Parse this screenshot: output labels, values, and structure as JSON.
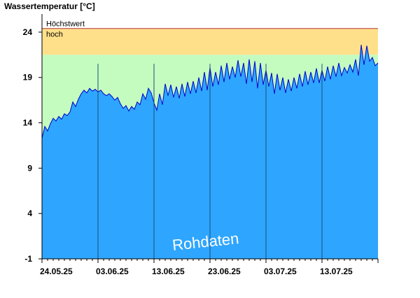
{
  "chart_data": {
    "type": "area",
    "title": "Wassertemperatur [°C]",
    "watermark": "Rohdaten",
    "ylim": [
      -1,
      26
    ],
    "y_ticks": [
      -1,
      4,
      9,
      14,
      19,
      24
    ],
    "x_range_days": [
      0,
      60
    ],
    "x_ticks": [
      {
        "label": "24.05.25",
        "day": 0
      },
      {
        "label": "03.06.25",
        "day": 10
      },
      {
        "label": "13.06.25",
        "day": 20
      },
      {
        "label": "23.06.25",
        "day": 30
      },
      {
        "label": "03.07.25",
        "day": 40
      },
      {
        "label": "13.07.25",
        "day": 50
      }
    ],
    "bands": [
      {
        "label": "hoch",
        "from": 21.5,
        "to": 24.4,
        "color": "#ffe08a"
      },
      {
        "label": "",
        "from": -1,
        "to": 21.5,
        "color": "#c4fcc0"
      }
    ],
    "threshold_lines": [
      {
        "label": "Höchstwert",
        "value": 24.4,
        "color": "#b03030"
      }
    ],
    "colors": {
      "fill": "#2ea6ff",
      "line": "#0000cc",
      "grid": "#1a4f80",
      "axis": "#000000"
    },
    "series": [
      {
        "x": [
          0,
          0.5,
          1,
          1.5,
          2,
          2.5,
          3,
          3.5,
          4,
          4.5,
          5,
          5.5,
          6,
          6.5,
          7,
          7.5,
          8,
          8.5,
          9,
          9.5,
          10,
          10.5,
          11,
          11.5,
          12,
          12.5,
          13,
          13.5,
          14,
          14.5,
          15,
          15.5,
          16,
          16.5,
          17,
          17.5,
          18,
          18.5,
          19,
          19.5,
          20,
          20.5,
          21,
          21.5,
          22,
          22.5,
          23,
          23.5,
          24,
          24.5,
          25,
          25.5,
          26,
          26.5,
          27,
          27.5,
          28,
          28.5,
          29,
          29.5,
          30,
          30.5,
          31,
          31.5,
          32,
          32.5,
          33,
          33.5,
          34,
          34.5,
          35,
          35.5,
          36,
          36.5,
          37,
          37.5,
          38,
          38.5,
          39,
          39.5,
          40,
          40.5,
          41,
          41.5,
          42,
          42.5,
          43,
          43.5,
          44,
          44.5,
          45,
          45.5,
          46,
          46.5,
          47,
          47.5,
          48,
          48.5,
          49,
          49.5,
          50,
          50.5,
          51,
          51.5,
          52,
          52.5,
          53,
          53.5,
          54,
          54.5,
          55,
          55.5,
          56,
          56.5,
          57,
          57.5,
          58,
          58.5,
          59,
          59.5,
          60
        ],
        "y": [
          12.3,
          13.6,
          13.1,
          13.9,
          14.5,
          14.2,
          14.7,
          14.4,
          15.0,
          14.8,
          15.2,
          16.3,
          15.8,
          16.6,
          17.2,
          17.6,
          17.3,
          17.8,
          17.5,
          17.7,
          17.4,
          17.6,
          17.2,
          17.0,
          17.2,
          16.9,
          16.5,
          16.8,
          16.1,
          15.6,
          15.9,
          15.3,
          15.8,
          15.5,
          16.3,
          16.0,
          17.2,
          16.6,
          17.8,
          17.3,
          16.2,
          15.4,
          17.2,
          16.0,
          18.3,
          17.0,
          18.2,
          16.8,
          18.0,
          16.7,
          18.3,
          16.9,
          18.5,
          17.2,
          18.6,
          17.3,
          19.0,
          17.5,
          19.6,
          17.6,
          20.1,
          18.0,
          19.6,
          18.2,
          20.3,
          18.5,
          20.6,
          18.8,
          20.2,
          19.0,
          20.9,
          19.1,
          20.6,
          18.3,
          21.0,
          18.5,
          20.8,
          17.8,
          20.6,
          18.2,
          19.8,
          18.0,
          19.5,
          17.2,
          19.4,
          17.6,
          19.0,
          17.3,
          18.8,
          17.5,
          19.0,
          17.8,
          19.4,
          18.0,
          19.7,
          18.2,
          19.6,
          18.4,
          20.0,
          18.4,
          19.8,
          18.6,
          20.2,
          18.8,
          20.3,
          19.1,
          20.6,
          19.2,
          20.1,
          19.5,
          20.4,
          19.6,
          21.0,
          19.2,
          22.6,
          20.4,
          22.5,
          20.8,
          21.2,
          20.3,
          20.6
        ]
      }
    ]
  }
}
